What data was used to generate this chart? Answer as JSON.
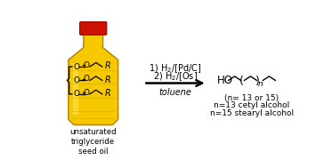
{
  "bg_color": "#ffffff",
  "bottle_color_light": "#f5c800",
  "bottle_color_dark": "#e0a800",
  "bottle_edge_color": "#b08000",
  "bottle_cap_color": "#cc1100",
  "bottle_cap_edge": "#990000",
  "text_color": "#000000",
  "label_unsaturated": "unsaturated\ntriglyceride\nseed oil",
  "label_cond1": "1) H$_2$/[Pd/C]",
  "label_cond2": "2) H$_2$/[Os]",
  "label_toluene": "toluene",
  "label_product_1": "(n= 13 or 15)",
  "label_product_2": "n=13 cetyl alcohol",
  "label_product_3": "n=15 stearyl alcohol",
  "font_size_cond": 7.0,
  "font_size_label": 6.2,
  "font_size_struct": 6.5,
  "font_size_R": 7.0,
  "font_size_HO": 8.5
}
